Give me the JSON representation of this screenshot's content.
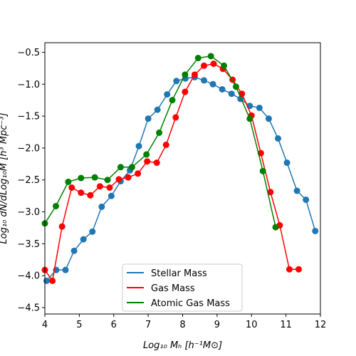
{
  "chart_data": {
    "type": "line",
    "title": "",
    "xlabel": "Log₁₀ Mₕ [h⁻¹M⊙]",
    "ylabel": "Log₁₀ dN/dLog₁₀M [h³ Mpc⁻³]",
    "xlim": [
      4,
      12
    ],
    "ylim": [
      -4.6,
      -0.35
    ],
    "xticks": [
      4,
      5,
      6,
      7,
      8,
      9,
      10,
      11,
      12
    ],
    "yticks": [
      -4.5,
      -4.0,
      -3.5,
      -3.0,
      -2.5,
      -2.0,
      -1.5,
      -1.0,
      -0.5
    ],
    "xtick_labels": [
      "4",
      "5",
      "6",
      "7",
      "8",
      "9",
      "10",
      "11",
      "12"
    ],
    "ytick_labels": [
      "−4.5",
      "−4.0",
      "−3.5",
      "−3.0",
      "−2.5",
      "−2.0",
      "−1.5",
      "−1.0",
      "−0.5"
    ],
    "grid": false,
    "legend_placement": "lower-center",
    "series": [
      {
        "name": "Stellar Mass",
        "color": "#1f77b4",
        "points": [
          [
            4.05,
            -4.08
          ],
          [
            4.33,
            -3.91
          ],
          [
            4.6,
            -3.91
          ],
          [
            4.85,
            -3.61
          ],
          [
            5.12,
            -3.43
          ],
          [
            5.38,
            -3.31
          ],
          [
            5.65,
            -2.92
          ],
          [
            5.93,
            -2.75
          ],
          [
            6.2,
            -2.52
          ],
          [
            6.47,
            -2.35
          ],
          [
            6.73,
            -1.97
          ],
          [
            7.0,
            -1.54
          ],
          [
            7.27,
            -1.4
          ],
          [
            7.55,
            -1.16
          ],
          [
            7.82,
            -0.95
          ],
          [
            8.08,
            -0.91
          ],
          [
            8.35,
            -0.89
          ],
          [
            8.62,
            -0.94
          ],
          [
            8.88,
            -1.0
          ],
          [
            9.15,
            -1.08
          ],
          [
            9.42,
            -1.15
          ],
          [
            9.68,
            -1.23
          ],
          [
            9.95,
            -1.34
          ],
          [
            10.23,
            -1.37
          ],
          [
            10.5,
            -1.54
          ],
          [
            10.77,
            -1.85
          ],
          [
            11.03,
            -2.23
          ],
          [
            11.32,
            -2.67
          ],
          [
            11.58,
            -2.81
          ],
          [
            11.85,
            -3.3
          ]
        ]
      },
      {
        "name": "Gas Mass",
        "color": "#ff0000",
        "points": [
          [
            4.0,
            -3.91
          ],
          [
            4.22,
            -4.08
          ],
          [
            4.5,
            -3.23
          ],
          [
            4.78,
            -2.62
          ],
          [
            5.05,
            -2.7
          ],
          [
            5.32,
            -2.74
          ],
          [
            5.6,
            -2.6
          ],
          [
            5.88,
            -2.62
          ],
          [
            6.15,
            -2.49
          ],
          [
            6.42,
            -2.46
          ],
          [
            6.7,
            -2.4
          ],
          [
            6.97,
            -2.21
          ],
          [
            7.25,
            -2.23
          ],
          [
            7.52,
            -1.95
          ],
          [
            7.8,
            -1.52
          ],
          [
            8.07,
            -1.12
          ],
          [
            8.35,
            -0.85
          ],
          [
            8.62,
            -0.71
          ],
          [
            8.9,
            -0.68
          ],
          [
            9.17,
            -0.76
          ],
          [
            9.45,
            -0.93
          ],
          [
            9.72,
            -1.15
          ],
          [
            10.0,
            -1.49
          ],
          [
            10.27,
            -2.08
          ],
          [
            10.55,
            -2.69
          ],
          [
            10.82,
            -3.21
          ],
          [
            11.1,
            -3.9
          ],
          [
            11.37,
            -3.9
          ]
        ]
      },
      {
        "name": "Atomic Gas Mass",
        "color": "#008000",
        "points": [
          [
            4.0,
            -3.18
          ],
          [
            4.32,
            -2.91
          ],
          [
            4.68,
            -2.53
          ],
          [
            5.05,
            -2.47
          ],
          [
            5.45,
            -2.46
          ],
          [
            5.82,
            -2.5
          ],
          [
            6.2,
            -2.3
          ],
          [
            6.53,
            -2.3
          ],
          [
            6.95,
            -2.1
          ],
          [
            7.32,
            -1.76
          ],
          [
            7.7,
            -1.25
          ],
          [
            8.07,
            -0.85
          ],
          [
            8.45,
            -0.59
          ],
          [
            8.82,
            -0.56
          ],
          [
            9.2,
            -0.71
          ],
          [
            9.55,
            -1.04
          ],
          [
            9.95,
            -1.54
          ],
          [
            10.33,
            -2.36
          ],
          [
            10.7,
            -3.24
          ]
        ]
      }
    ]
  }
}
